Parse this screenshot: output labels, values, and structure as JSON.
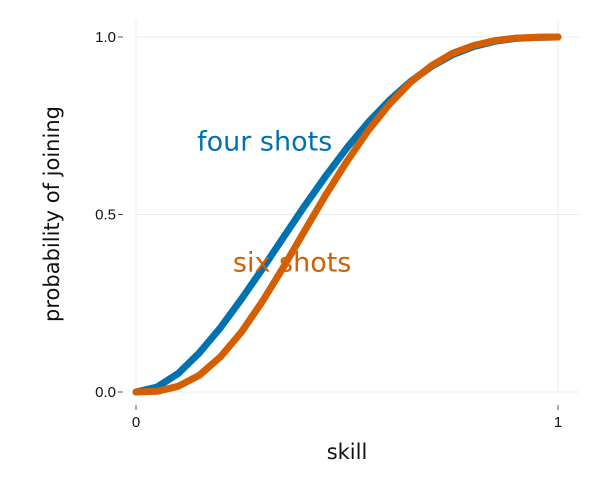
{
  "chart_data": {
    "type": "line",
    "title": "",
    "xlabel": "skill",
    "ylabel": "probability of joining",
    "xlim": [
      0,
      1
    ],
    "ylim": [
      0,
      1
    ],
    "x_ticks": [
      0,
      1
    ],
    "x_tick_labels": [
      "0",
      "1"
    ],
    "y_ticks": [
      0,
      0.5,
      1
    ],
    "y_tick_labels": [
      "0.0",
      "0.5",
      "1.0"
    ],
    "grid": true,
    "legend": "none; series are labeled directly on the plot",
    "series": [
      {
        "name": "four shots",
        "color": "#0072b2",
        "x": [
          0,
          0.05,
          0.1,
          0.15,
          0.2,
          0.25,
          0.3,
          0.35,
          0.4,
          0.45,
          0.5,
          0.55,
          0.6,
          0.65,
          0.7,
          0.75,
          0.8,
          0.85,
          0.9,
          0.95,
          1
        ],
        "y": [
          0,
          0.014,
          0.052,
          0.11,
          0.181,
          0.262,
          0.348,
          0.437,
          0.525,
          0.609,
          0.688,
          0.759,
          0.821,
          0.874,
          0.917,
          0.95,
          0.973,
          0.988,
          0.996,
          0.999,
          1
        ]
      },
      {
        "name": "six shots",
        "color": "#d55e00",
        "x": [
          0,
          0.05,
          0.1,
          0.15,
          0.2,
          0.25,
          0.3,
          0.35,
          0.4,
          0.45,
          0.5,
          0.55,
          0.6,
          0.65,
          0.7,
          0.75,
          0.8,
          0.85,
          0.9,
          0.95,
          1
        ],
        "y": [
          0,
          0.002,
          0.016,
          0.047,
          0.099,
          0.169,
          0.256,
          0.353,
          0.455,
          0.556,
          0.65,
          0.736,
          0.81,
          0.872,
          0.919,
          0.954,
          0.976,
          0.99,
          0.997,
          0.9995,
          1
        ]
      }
    ],
    "annotations": [
      {
        "text": "four shots",
        "series": "four shots",
        "at": [
          0.305,
          0.68
        ]
      },
      {
        "text": "six shots",
        "series": "six shots",
        "at": [
          0.37,
          0.34
        ]
      }
    ]
  }
}
